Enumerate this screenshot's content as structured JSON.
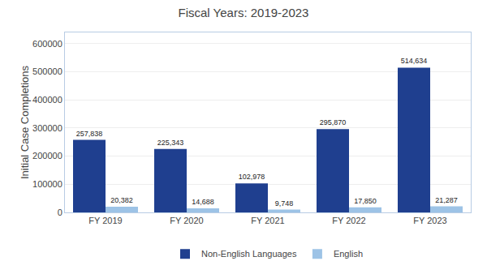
{
  "chart_data": {
    "type": "bar",
    "title": "Fiscal Years: 2019-2023",
    "categories": [
      "FY 2019",
      "FY 2020",
      "FY 2021",
      "FY 2022",
      "FY 2023"
    ],
    "series": [
      {
        "name": "Non-English Languages",
        "color": "#1F3F8F",
        "values": [
          257838,
          225343,
          102978,
          295870,
          514634
        ],
        "value_labels": [
          "257,838",
          "225,343",
          "102,978",
          "295,870",
          "514,634"
        ]
      },
      {
        "name": "English",
        "color": "#9DC3E6",
        "values": [
          20382,
          14688,
          9748,
          17850,
          21287
        ],
        "value_labels": [
          "20,382",
          "14,688",
          "9,748",
          "17,850",
          "21,287"
        ]
      }
    ],
    "ylabel": "Initial Case Completions",
    "ylim": [
      0,
      640000
    ],
    "yticks": [
      0,
      100000,
      200000,
      300000,
      400000,
      500000,
      600000
    ],
    "grid": true,
    "legend": "bottom",
    "data_labels": true
  }
}
